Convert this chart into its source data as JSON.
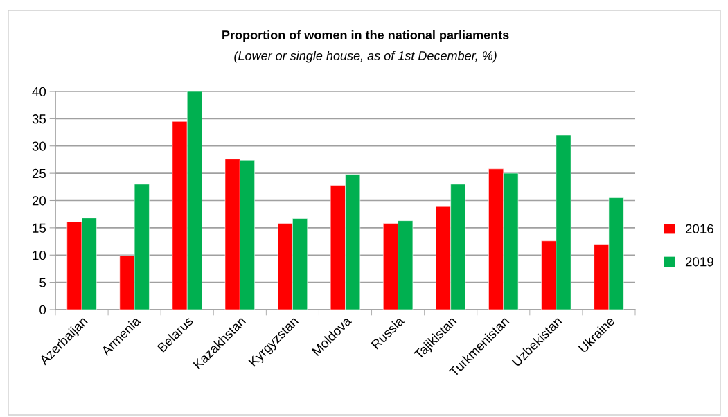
{
  "chart_data": {
    "type": "bar",
    "title": "Proportion of women in the national parliaments",
    "subtitle": "(Lower or single house, as of 1st December, %)",
    "categories": [
      "Azerbaijan",
      "Armenia",
      "Belarus",
      "Kazakhstan",
      "Kyrgyzstan",
      "Moldova",
      "Russia",
      "Tajikistan",
      "Turkmenistan",
      "Uzbekistan",
      "Ukraine"
    ],
    "series": [
      {
        "name": "2016",
        "color": "#ff0000",
        "values": [
          16.1,
          9.9,
          34.5,
          27.6,
          15.8,
          22.8,
          15.8,
          18.9,
          25.8,
          12.6,
          12.0
        ]
      },
      {
        "name": "2019",
        "color": "#00b050",
        "values": [
          16.8,
          23.0,
          40.0,
          27.4,
          16.7,
          24.8,
          16.3,
          23.0,
          25.0,
          32.0,
          20.5
        ]
      }
    ],
    "ylim": [
      0,
      40
    ],
    "yticks": [
      0,
      5,
      10,
      15,
      20,
      25,
      30,
      35,
      40
    ],
    "grid": "y",
    "legend": "right"
  }
}
